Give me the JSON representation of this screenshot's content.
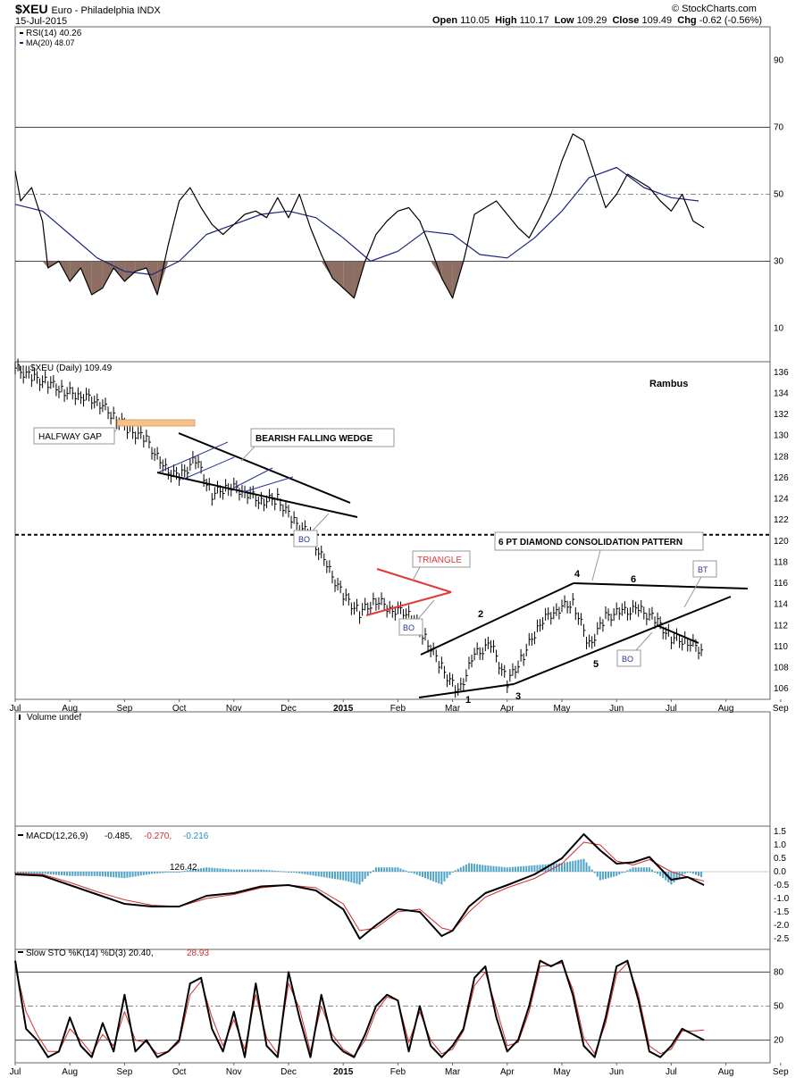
{
  "header": {
    "symbol": "$XEU",
    "name": "Euro - Philadelphia  INDX",
    "date": "15-Jul-2015",
    "open_label": "Open",
    "open": "110.05",
    "high_label": "High",
    "high": "110.17",
    "low_label": "Low",
    "low": "109.29",
    "close_label": "Close",
    "close": "109.49",
    "chg_label": "Chg",
    "chg": "-0.62 (-0.56%)",
    "watermark": "© StockCharts.com"
  },
  "colors": {
    "price": "#000000",
    "ma": "#1a237e",
    "rsi_fill": "#8d6e63",
    "macd_signal": "#d32f2f",
    "histogram": "#4fa3c7",
    "pattern_red": "#e53935",
    "pattern_blue": "#283593",
    "gap": "#f6c28b",
    "grid": "#cccccc"
  },
  "x_labels": [
    "Jul",
    "Aug",
    "Sep",
    "Oct",
    "Nov",
    "Dec",
    "2015",
    "Feb",
    "Mar",
    "Apr",
    "May",
    "Jun",
    "Jul",
    "Aug",
    "Sep"
  ],
  "annotations": {
    "author": "Rambus",
    "halfway_gap": "HALFWAY GAP",
    "falling_wedge": "BEARISH FALLING WEDGE",
    "bo1": "BO",
    "triangle": "TRIANGLE",
    "bo2": "BO",
    "diamond": "6 PT DIAMOND CONSOLIDATION PATTERN",
    "bt": "BT",
    "bo3": "BO",
    "points": [
      "1",
      "2",
      "3",
      "4",
      "5",
      "6"
    ]
  },
  "chart_data": [
    {
      "type": "line",
      "panel": "rsi",
      "legend": [
        "RSI(14) 40.26",
        "MA(20) 48.07"
      ],
      "ylim": [
        0,
        100
      ],
      "yticks": [
        10,
        30,
        50,
        70,
        90
      ],
      "series": [
        {
          "name": "RSI(14)",
          "color": "#000000",
          "x_month_index": [
            0.0,
            0.1,
            0.3,
            0.5,
            0.6,
            0.8,
            1.0,
            1.2,
            1.4,
            1.6,
            1.8,
            2.0,
            2.2,
            2.4,
            2.6,
            2.8,
            3.0,
            3.2,
            3.4,
            3.6,
            3.8,
            4.0,
            4.2,
            4.4,
            4.6,
            4.8,
            5.0,
            5.2,
            5.4,
            5.6,
            5.8,
            6.0,
            6.2,
            6.4,
            6.6,
            6.8,
            7.0,
            7.2,
            7.4,
            7.6,
            7.8,
            8.0,
            8.2,
            8.4,
            8.6,
            8.8,
            9.0,
            9.2,
            9.4,
            9.6,
            9.8,
            10.0,
            10.2,
            10.4,
            10.6,
            10.8,
            11.0,
            11.2,
            11.4,
            11.6,
            11.8,
            12.0,
            12.2,
            12.4,
            12.6
          ],
          "values": [
            57,
            48,
            52,
            42,
            28,
            30,
            24,
            28,
            20,
            22,
            28,
            24,
            27,
            28,
            20,
            35,
            48,
            52,
            46,
            41,
            38,
            41,
            44,
            45,
            43,
            49,
            43,
            50,
            40,
            32,
            25,
            22,
            19,
            30,
            38,
            42,
            45,
            46,
            42,
            34,
            25,
            19,
            30,
            44,
            46,
            48,
            44,
            40,
            37,
            43,
            50,
            60,
            68,
            66,
            56,
            46,
            50,
            56,
            54,
            52,
            48,
            45,
            50,
            42,
            40
          ]
        },
        {
          "name": "MA(20)",
          "color": "#1a237e",
          "x_month_index": [
            0.0,
            0.5,
            1.0,
            1.5,
            2.0,
            2.5,
            3.0,
            3.5,
            4.0,
            4.5,
            5.0,
            5.5,
            6.0,
            6.5,
            7.0,
            7.5,
            8.0,
            8.5,
            9.0,
            9.5,
            10.0,
            10.5,
            11.0,
            11.5,
            12.0,
            12.5
          ],
          "values": [
            47,
            45,
            38,
            31,
            27,
            26,
            30,
            38,
            41,
            44,
            45,
            43,
            37,
            30,
            33,
            39,
            38,
            32,
            31,
            37,
            45,
            55,
            58,
            52,
            49,
            48
          ]
        }
      ],
      "bands": [
        30,
        70
      ],
      "fill_below": 30
    },
    {
      "type": "line",
      "panel": "price",
      "legend": "$XEU (Daily) 109.49",
      "ylim": [
        105,
        137
      ],
      "yticks": [
        106,
        108,
        110,
        112,
        114,
        116,
        118,
        120,
        122,
        124,
        126,
        128,
        130,
        132,
        134,
        136
      ],
      "series": [
        {
          "name": "$XEU (Daily)",
          "color": "#000000",
          "x_month_index": [
            0.0,
            0.3,
            0.6,
            0.9,
            1.2,
            1.5,
            1.8,
            2.1,
            2.4,
            2.7,
            3.0,
            3.3,
            3.6,
            3.9,
            4.2,
            4.5,
            4.8,
            5.1,
            5.4,
            5.7,
            6.0,
            6.3,
            6.6,
            6.9,
            7.2,
            7.5,
            7.8,
            8.1,
            8.4,
            8.7,
            9.0,
            9.3,
            9.6,
            9.9,
            10.2,
            10.5,
            10.8,
            11.1,
            11.4,
            11.7,
            12.0,
            12.3,
            12.6
          ],
          "values": [
            136.4,
            135.5,
            135.0,
            134.2,
            133.8,
            133.3,
            131.8,
            130.5,
            129.6,
            127.0,
            126.0,
            127.8,
            124.4,
            125.2,
            124.7,
            123.8,
            124.0,
            121.8,
            120.5,
            117.6,
            114.8,
            113.2,
            114.4,
            113.5,
            113.2,
            110.8,
            108.0,
            105.6,
            109.2,
            110.2,
            106.6,
            109.2,
            112.3,
            113.5,
            114.2,
            110.1,
            112.8,
            113.3,
            113.5,
            112.6,
            110.8,
            110.5,
            109.5
          ]
        }
      ],
      "reference_line": 120.6
    },
    {
      "type": "bar",
      "panel": "volume",
      "legend": "Volume undef",
      "values": []
    },
    {
      "type": "line",
      "panel": "macd",
      "legend": [
        "MACD(12,26,9)",
        "-0.485,",
        "-0.270,",
        "-0.216"
      ],
      "value_label": "126.42",
      "ylim": [
        -2.9,
        1.7
      ],
      "yticks": [
        1.5,
        1.0,
        0.5,
        0.0,
        -0.5,
        -1.0,
        -1.5,
        -2.0,
        -2.5
      ],
      "series": [
        {
          "name": "MACD",
          "color": "#000000",
          "x_month_index": [
            0.0,
            0.5,
            1.0,
            1.5,
            2.0,
            2.5,
            3.0,
            3.5,
            4.0,
            4.5,
            5.0,
            5.5,
            6.0,
            6.3,
            6.6,
            7.0,
            7.4,
            7.8,
            8.0,
            8.3,
            8.6,
            9.0,
            9.5,
            10.0,
            10.4,
            10.7,
            11.0,
            11.3,
            11.6,
            12.0,
            12.3,
            12.6
          ],
          "values": [
            -0.1,
            -0.15,
            -0.5,
            -0.85,
            -1.2,
            -1.3,
            -1.3,
            -0.9,
            -0.8,
            -0.55,
            -0.5,
            -0.7,
            -1.4,
            -2.5,
            -2.0,
            -1.4,
            -1.5,
            -2.4,
            -2.2,
            -1.3,
            -0.8,
            -0.5,
            -0.1,
            0.5,
            1.4,
            0.8,
            0.3,
            0.35,
            0.55,
            -0.3,
            -0.2,
            -0.5
          ]
        },
        {
          "name": "Signal",
          "color": "#d32f2f",
          "x_month_index": [
            0.0,
            0.5,
            1.0,
            1.5,
            2.0,
            2.5,
            3.0,
            3.5,
            4.0,
            4.5,
            5.0,
            5.5,
            6.0,
            6.3,
            6.6,
            7.0,
            7.4,
            7.8,
            8.0,
            8.3,
            8.6,
            9.0,
            9.5,
            10.0,
            10.4,
            10.7,
            11.0,
            11.3,
            11.6,
            12.0,
            12.3,
            12.6
          ],
          "values": [
            -0.05,
            -0.1,
            -0.4,
            -0.75,
            -1.05,
            -1.25,
            -1.3,
            -1.0,
            -0.85,
            -0.6,
            -0.5,
            -0.6,
            -1.2,
            -2.2,
            -2.1,
            -1.5,
            -1.4,
            -2.1,
            -2.2,
            -1.5,
            -0.95,
            -0.6,
            -0.25,
            0.3,
            1.1,
            1.0,
            0.4,
            0.25,
            0.45,
            0.0,
            -0.2,
            -0.35
          ]
        }
      ]
    },
    {
      "type": "line",
      "panel": "stochastic",
      "legend": [
        "Slow STO %K(14) %D(3) 20.40,",
        "28.93"
      ],
      "ylim": [
        0,
        100
      ],
      "yticks": [
        20,
        50,
        80
      ],
      "series": [
        {
          "name": "%K",
          "color": "#000000",
          "x_month_index": [
            0.0,
            0.2,
            0.4,
            0.6,
            0.8,
            1.0,
            1.2,
            1.4,
            1.6,
            1.8,
            2.0,
            2.2,
            2.4,
            2.6,
            2.8,
            3.0,
            3.2,
            3.4,
            3.6,
            3.8,
            4.0,
            4.2,
            4.4,
            4.6,
            4.8,
            5.0,
            5.2,
            5.4,
            5.6,
            5.8,
            6.0,
            6.2,
            6.4,
            6.6,
            6.8,
            7.0,
            7.2,
            7.4,
            7.6,
            7.8,
            8.0,
            8.2,
            8.4,
            8.6,
            8.8,
            9.0,
            9.2,
            9.4,
            9.6,
            9.8,
            10.0,
            10.2,
            10.4,
            10.6,
            10.8,
            11.0,
            11.2,
            11.4,
            11.6,
            11.8,
            12.0,
            12.2,
            12.4,
            12.6
          ],
          "values": [
            90,
            30,
            20,
            5,
            10,
            40,
            15,
            5,
            35,
            10,
            60,
            10,
            20,
            5,
            10,
            20,
            70,
            75,
            30,
            10,
            45,
            5,
            70,
            15,
            5,
            80,
            40,
            5,
            60,
            20,
            10,
            5,
            25,
            50,
            60,
            55,
            10,
            50,
            15,
            5,
            15,
            30,
            75,
            85,
            40,
            10,
            20,
            50,
            90,
            85,
            90,
            60,
            15,
            5,
            40,
            85,
            90,
            55,
            10,
            5,
            15,
            30,
            25,
            20
          ]
        },
        {
          "name": "%D",
          "color": "#d32f2f",
          "x_month_index": [
            0.0,
            0.2,
            0.4,
            0.6,
            0.8,
            1.0,
            1.2,
            1.4,
            1.6,
            1.8,
            2.0,
            2.2,
            2.4,
            2.6,
            2.8,
            3.0,
            3.2,
            3.4,
            3.6,
            3.8,
            4.0,
            4.2,
            4.4,
            4.6,
            4.8,
            5.0,
            5.2,
            5.4,
            5.6,
            5.8,
            6.0,
            6.2,
            6.4,
            6.6,
            6.8,
            7.0,
            7.2,
            7.4,
            7.6,
            7.8,
            8.0,
            8.2,
            8.4,
            8.6,
            8.8,
            9.0,
            9.2,
            9.4,
            9.6,
            9.8,
            10.0,
            10.2,
            10.4,
            10.6,
            10.8,
            11.0,
            11.2,
            11.4,
            11.6,
            11.8,
            12.0,
            12.2,
            12.4,
            12.6
          ],
          "values": [
            85,
            45,
            25,
            10,
            10,
            30,
            20,
            8,
            25,
            15,
            45,
            20,
            18,
            8,
            10,
            18,
            60,
            72,
            40,
            15,
            38,
            12,
            60,
            22,
            8,
            70,
            48,
            10,
            50,
            25,
            12,
            6,
            20,
            45,
            58,
            55,
            18,
            45,
            20,
            8,
            12,
            28,
            68,
            80,
            48,
            15,
            18,
            45,
            85,
            86,
            88,
            65,
            22,
            8,
            35,
            78,
            88,
            60,
            15,
            8,
            12,
            28,
            28,
            29
          ]
        }
      ],
      "bands": [
        20,
        50,
        80
      ]
    }
  ]
}
